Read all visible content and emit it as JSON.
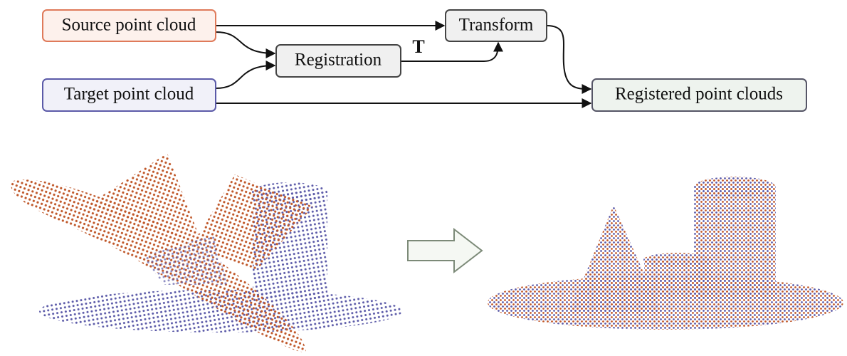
{
  "nodes": [
    {
      "label": "Source point cloud"
    },
    {
      "label": "Target point cloud"
    },
    {
      "label": "Registration"
    },
    {
      "label": "Transform"
    },
    {
      "label": "Registered point clouds"
    }
  ],
  "edge_label": "T"
}
